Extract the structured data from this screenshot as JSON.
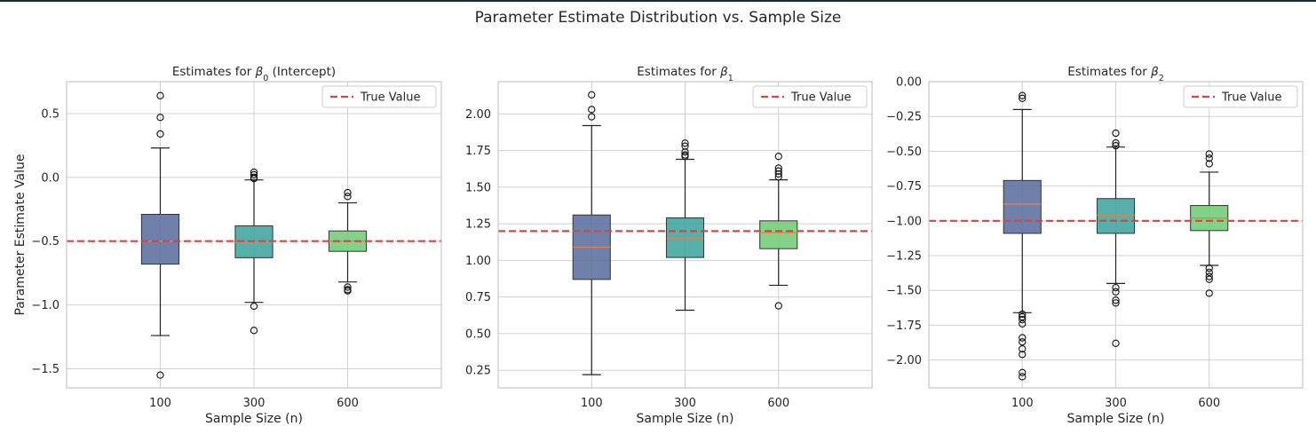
{
  "suptitle": "Parameter Estimate Distribution vs. Sample Size",
  "colors": {
    "box_fills": [
      "#5b6f9f",
      "#3fa49c",
      "#72cc78"
    ],
    "median": "#e0824f",
    "true_line": "#d64545",
    "grid": "#d0d0d0",
    "axis": "#c8c8c8"
  },
  "chart_data": [
    {
      "type": "box",
      "title_prefix": "Estimates for ",
      "title_symbol": "β",
      "title_sub": "0",
      "title_suffix": " (Intercept)",
      "xlabel": "Sample Size (n)",
      "ylabel": "Parameter Estimate Value",
      "categories": [
        "100",
        "300",
        "600"
      ],
      "ylim": [
        -1.65,
        0.75
      ],
      "yticks": [
        -1.5,
        -1.0,
        -0.5,
        0.0,
        0.5
      ],
      "ytick_labels": [
        "−1.5",
        "−1.0",
        "−0.5",
        "0.0",
        "0.5"
      ],
      "true_value": -0.5,
      "legend_label": "True Value",
      "legend_position": "top-right",
      "grid": true,
      "boxes": [
        {
          "whislo": -1.24,
          "q1": -0.68,
          "med": -0.5,
          "q3": -0.29,
          "whishi": 0.23,
          "fliers": [
            0.64,
            0.47,
            0.34,
            -1.55
          ]
        },
        {
          "whislo": -0.98,
          "q1": -0.63,
          "med": -0.51,
          "q3": -0.38,
          "whishi": -0.02,
          "fliers": [
            0.04,
            0.02,
            0.0,
            -0.01,
            -1.01,
            -1.2
          ]
        },
        {
          "whislo": -0.82,
          "q1": -0.58,
          "med": -0.5,
          "q3": -0.42,
          "whishi": -0.2,
          "fliers": [
            -0.12,
            -0.15,
            -0.86,
            -0.88,
            -0.89
          ]
        }
      ]
    },
    {
      "type": "box",
      "title_prefix": "Estimates for ",
      "title_symbol": "β",
      "title_sub": "1",
      "title_suffix": "",
      "xlabel": "Sample Size (n)",
      "ylabel": "",
      "categories": [
        "100",
        "300",
        "600"
      ],
      "ylim": [
        0.13,
        2.22
      ],
      "yticks": [
        0.25,
        0.5,
        0.75,
        1.0,
        1.25,
        1.5,
        1.75,
        2.0
      ],
      "ytick_labels": [
        "0.25",
        "0.50",
        "0.75",
        "1.00",
        "1.25",
        "1.50",
        "1.75",
        "2.00"
      ],
      "true_value": 1.2,
      "legend_label": "True Value",
      "legend_position": "top-right",
      "grid": true,
      "boxes": [
        {
          "whislo": 0.22,
          "q1": 0.87,
          "med": 1.09,
          "q3": 1.31,
          "whishi": 1.92,
          "fliers": [
            2.13,
            2.03,
            1.98
          ]
        },
        {
          "whislo": 0.66,
          "q1": 1.02,
          "med": 1.15,
          "q3": 1.29,
          "whishi": 1.69,
          "fliers": [
            1.8,
            1.78,
            1.74,
            1.72,
            1.71
          ]
        },
        {
          "whislo": 0.83,
          "q1": 1.08,
          "med": 1.19,
          "q3": 1.27,
          "whishi": 1.55,
          "fliers": [
            1.71,
            1.63,
            1.61,
            1.59,
            1.57,
            0.69
          ]
        }
      ]
    },
    {
      "type": "box",
      "title_prefix": "Estimates for ",
      "title_symbol": "β",
      "title_sub": "2",
      "title_suffix": "",
      "xlabel": "Sample Size (n)",
      "ylabel": "",
      "categories": [
        "100",
        "300",
        "600"
      ],
      "ylim": [
        -2.2,
        0.0
      ],
      "yticks": [
        -2.0,
        -1.75,
        -1.5,
        -1.25,
        -1.0,
        -0.75,
        -0.5,
        -0.25,
        0.0
      ],
      "ytick_labels": [
        "−2.00",
        "−1.75",
        "−1.50",
        "−1.25",
        "−1.00",
        "−0.75",
        "−0.50",
        "−0.25",
        "0.00"
      ],
      "true_value": -1.0,
      "legend_label": "True Value",
      "legend_position": "top-right",
      "grid": true,
      "boxes": [
        {
          "whislo": -1.66,
          "q1": -1.09,
          "med": -0.88,
          "q3": -0.71,
          "whishi": -0.2,
          "fliers": [
            -0.1,
            -0.12,
            -1.67,
            -1.69,
            -1.71,
            -1.74,
            -1.84,
            -1.87,
            -1.92,
            -1.96,
            -2.09,
            -2.12
          ]
        },
        {
          "whislo": -1.45,
          "q1": -1.09,
          "med": -0.96,
          "q3": -0.84,
          "whishi": -0.47,
          "fliers": [
            -0.37,
            -0.44,
            -0.46,
            -1.48,
            -1.51,
            -1.57,
            -1.59,
            -1.88
          ]
        },
        {
          "whislo": -1.32,
          "q1": -1.07,
          "med": -0.98,
          "q3": -0.89,
          "whishi": -0.65,
          "fliers": [
            -0.52,
            -0.55,
            -0.59,
            -1.34,
            -1.37,
            -1.4,
            -1.42,
            -1.52
          ]
        }
      ]
    }
  ]
}
